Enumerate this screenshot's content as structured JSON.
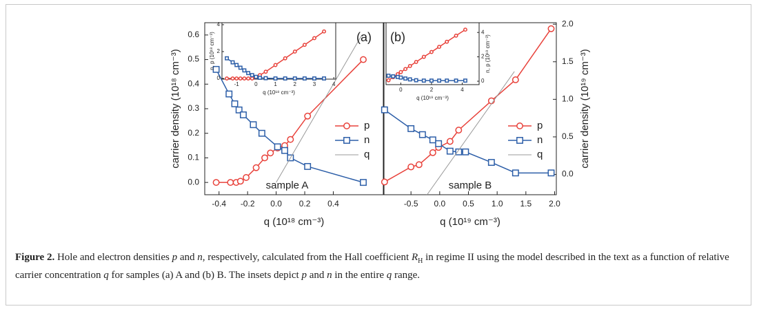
{
  "chart_data": [
    {
      "type": "line",
      "panel_label": "(a)",
      "annotation": "sample A",
      "x_label": "q (10¹⁸ cm⁻³)",
      "y_label": "carrier density (10¹⁸ cm⁻³)",
      "y_axis_side": "left",
      "xlim": [
        -0.5,
        0.75
      ],
      "xticks": [
        -0.4,
        -0.2,
        {
          "value": 0,
          "label": "0.0"
        },
        0.2,
        0.4
      ],
      "ylim": [
        -0.05,
        0.65
      ],
      "yticks": [
        {
          "value": 0,
          "label": "0.0"
        },
        0.1,
        0.2,
        0.3,
        0.4,
        0.5,
        0.6
      ],
      "legend": "right",
      "series": [
        {
          "name": "p",
          "color": "#e8413a",
          "marker": "circle",
          "x": [
            -0.42,
            -0.32,
            -0.28,
            -0.25,
            -0.21,
            -0.14,
            -0.08,
            -0.04,
            0.01,
            0.06,
            0.1,
            0.22,
            0.61
          ],
          "values": [
            0,
            0,
            0,
            0.005,
            0.02,
            0.06,
            0.1,
            0.12,
            0.14,
            0.15,
            0.175,
            0.27,
            0.5
          ]
        },
        {
          "name": "n",
          "color": "#2c5ea8",
          "marker": "square",
          "x": [
            -0.42,
            -0.33,
            -0.29,
            -0.26,
            -0.23,
            -0.16,
            -0.1,
            0.01,
            0.06,
            0.1,
            0.22,
            0.61
          ],
          "values": [
            0.46,
            0.36,
            0.32,
            0.295,
            0.275,
            0.235,
            0.2,
            0.145,
            0.13,
            0.1,
            0.065,
            0
          ]
        },
        {
          "name": "q",
          "color": "#999999",
          "marker": "none",
          "x": [
            0,
            0.6
          ],
          "values": [
            0,
            0.6
          ]
        }
      ]
    },
    {
      "type": "line",
      "panel_label": "(b)",
      "annotation": "sample B",
      "x_label": "q (10¹⁹ cm⁻³)",
      "y_label": "carrier density (10¹⁹ cm⁻³)",
      "y_axis_side": "right",
      "xlim": [
        -0.97,
        2.03
      ],
      "xticks": [
        -0.5,
        {
          "value": 0,
          "label": "0.0"
        },
        0.5,
        {
          "value": 1,
          "label": "1.0"
        },
        1.5,
        {
          "value": 2,
          "label": "2.0"
        }
      ],
      "ylim": [
        -0.27,
        2.02
      ],
      "yticks": [
        {
          "value": 0,
          "label": "0.0"
        },
        0.5,
        {
          "value": 1,
          "label": "1.0"
        },
        1.5,
        {
          "value": 2,
          "label": "2.0"
        }
      ],
      "legend": "right",
      "series": [
        {
          "name": "p",
          "color": "#e8413a",
          "marker": "circle",
          "x": [
            -0.96,
            -0.5,
            -0.36,
            -0.12,
            -0.02,
            0.18,
            0.33,
            0.9,
            1.32,
            1.94
          ],
          "values": [
            -0.1,
            0.1,
            0.13,
            0.29,
            0.36,
            0.44,
            0.59,
            0.98,
            1.26,
            1.94
          ]
        },
        {
          "name": "n",
          "color": "#2c5ea8",
          "marker": "square",
          "x": [
            -0.96,
            -0.5,
            -0.3,
            -0.12,
            -0.02,
            0.18,
            0.33,
            0.45,
            0.9,
            1.32,
            1.94
          ],
          "values": [
            0.86,
            0.61,
            0.53,
            0.46,
            0.41,
            0.31,
            0.3,
            0.3,
            0.16,
            0.02,
            0.02
          ]
        },
        {
          "name": "q",
          "color": "#999999",
          "marker": "none",
          "x": [
            -0.22,
            1.3
          ],
          "values": [
            -0.27,
            1.37
          ]
        }
      ]
    },
    {
      "type": "line",
      "x_label": "q (10¹⁸ cm⁻³)",
      "y_label": "n, p (10¹⁸ cm⁻³)",
      "y_axis_side": "left",
      "xlim": [
        -1.75,
        4.1
      ],
      "xticks": [
        -1,
        0,
        1,
        2,
        3,
        4
      ],
      "ylim": [
        -0.05,
        4.15
      ],
      "yticks": [
        0,
        2,
        4
      ],
      "series": [
        {
          "color": "#e8413a",
          "marker": "circle",
          "x": [
            -1.5,
            -1.2,
            -1,
            -0.8,
            -0.6,
            -0.4,
            -0.2,
            0,
            0.2,
            0.5,
            1,
            1.5,
            2,
            2.5,
            3,
            3.5
          ],
          "values": [
            0,
            0,
            0,
            0,
            0,
            0,
            0,
            0.1,
            0.25,
            0.5,
            1,
            1.5,
            2,
            2.5,
            3,
            3.5
          ]
        },
        {
          "color": "#2c5ea8",
          "marker": "square",
          "x": [
            -1.5,
            -1.2,
            -1,
            -0.8,
            -0.6,
            -0.4,
            -0.2,
            0,
            0.2,
            0.5,
            1,
            1.5,
            2,
            2.5,
            3,
            3.5
          ],
          "values": [
            1.5,
            1.2,
            1,
            0.8,
            0.6,
            0.4,
            0.25,
            0.12,
            0.05,
            0.02,
            0,
            0,
            0,
            0,
            0,
            0
          ]
        }
      ]
    },
    {
      "type": "line",
      "x_label": "q (10¹⁹ cm⁻³)",
      "y_label": "n, p (10¹⁹ cm⁻³)",
      "y_axis_side": "right",
      "xlim": [
        -0.96,
        5.1
      ],
      "xticks": [
        0,
        2,
        4
      ],
      "ylim": [
        -0.28,
        4.8
      ],
      "yticks": [
        0,
        2,
        4
      ],
      "series": [
        {
          "color": "#e8413a",
          "marker": "circle",
          "x": [
            -0.8,
            -0.5,
            -0.2,
            0,
            0.3,
            0.6,
            1,
            1.5,
            2,
            2.5,
            3,
            3.6,
            4.2
          ],
          "values": [
            0.08,
            0.33,
            0.58,
            0.75,
            1.0,
            1.25,
            1.58,
            2.0,
            2.4,
            2.82,
            3.24,
            3.74,
            4.23
          ]
        },
        {
          "color": "#2c5ea8",
          "marker": "square",
          "x": [
            -0.8,
            -0.5,
            -0.2,
            0,
            0.3,
            0.6,
            1,
            1.5,
            2,
            2.5,
            3,
            3.6,
            4.2
          ],
          "values": [
            0.45,
            0.4,
            0.35,
            0.3,
            0.22,
            0.15,
            0.08,
            0.05,
            0.05,
            0.05,
            0.05,
            0.05,
            0.05
          ]
        }
      ]
    }
  ],
  "caption": [
    {
      "text": "Figure 2.",
      "style": "bold"
    },
    {
      "text": " Hole and electron densities ",
      "style": "normal"
    },
    {
      "text": "p",
      "style": "italic"
    },
    {
      "text": " and ",
      "style": "normal"
    },
    {
      "text": "n",
      "style": "italic"
    },
    {
      "text": ", respectively, calculated from the Hall coefficient ",
      "style": "normal"
    },
    {
      "text": "R",
      "style": "italic"
    },
    {
      "text": "H",
      "style": "sub"
    },
    {
      "text": " in regime II using the model described in the text as a function of relative carrier concentration ",
      "style": "normal"
    },
    {
      "text": "q",
      "style": "italic"
    },
    {
      "text": " for samples (a) A and (b) B. The insets depict ",
      "style": "normal"
    },
    {
      "text": "p",
      "style": "italic"
    },
    {
      "text": " and ",
      "style": "normal"
    },
    {
      "text": "n",
      "style": "italic"
    },
    {
      "text": " in the entire ",
      "style": "normal"
    },
    {
      "text": "q",
      "style": "italic"
    },
    {
      "text": " range.",
      "style": "normal"
    }
  ]
}
